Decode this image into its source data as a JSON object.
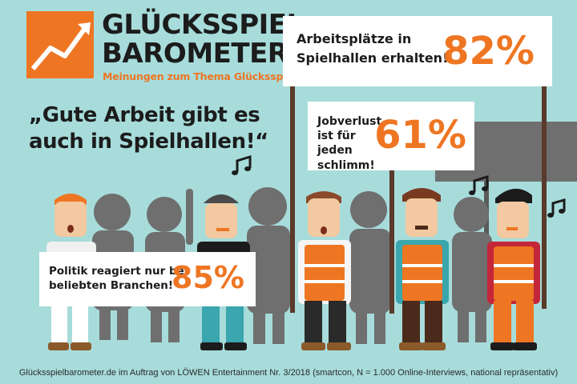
{
  "brand": {
    "name_line1": "GLÜCKSSPIEL",
    "name_line2": "BAROMETER",
    "tagline": "Meinungen zum Thema Glücksspiel"
  },
  "headline": "„Gute Arbeit gibt es auch in Spielhallen!“",
  "signs": {
    "top": {
      "text": "Arbeitsplätze in Spielhallen erhalten!",
      "value": "82%"
    },
    "mid": {
      "text": "Jobverlust ist für jeden schlimm!",
      "value": "61%"
    },
    "left": {
      "text": "Politik reagiert nur bei beliebten Branchen!",
      "value": "85%"
    }
  },
  "footer": "Glücksspielbarometer.de im Auftrag von LÖWEN Entertainment Nr. 3/2018 (smartcon, N = 1.000 Online-Interviews, national repräsentativ)",
  "colors": {
    "background": "#a7dcdb",
    "accent": "#ee7623",
    "dark": "#1c1c1c",
    "crowd_gray": "#6f6f6f"
  }
}
